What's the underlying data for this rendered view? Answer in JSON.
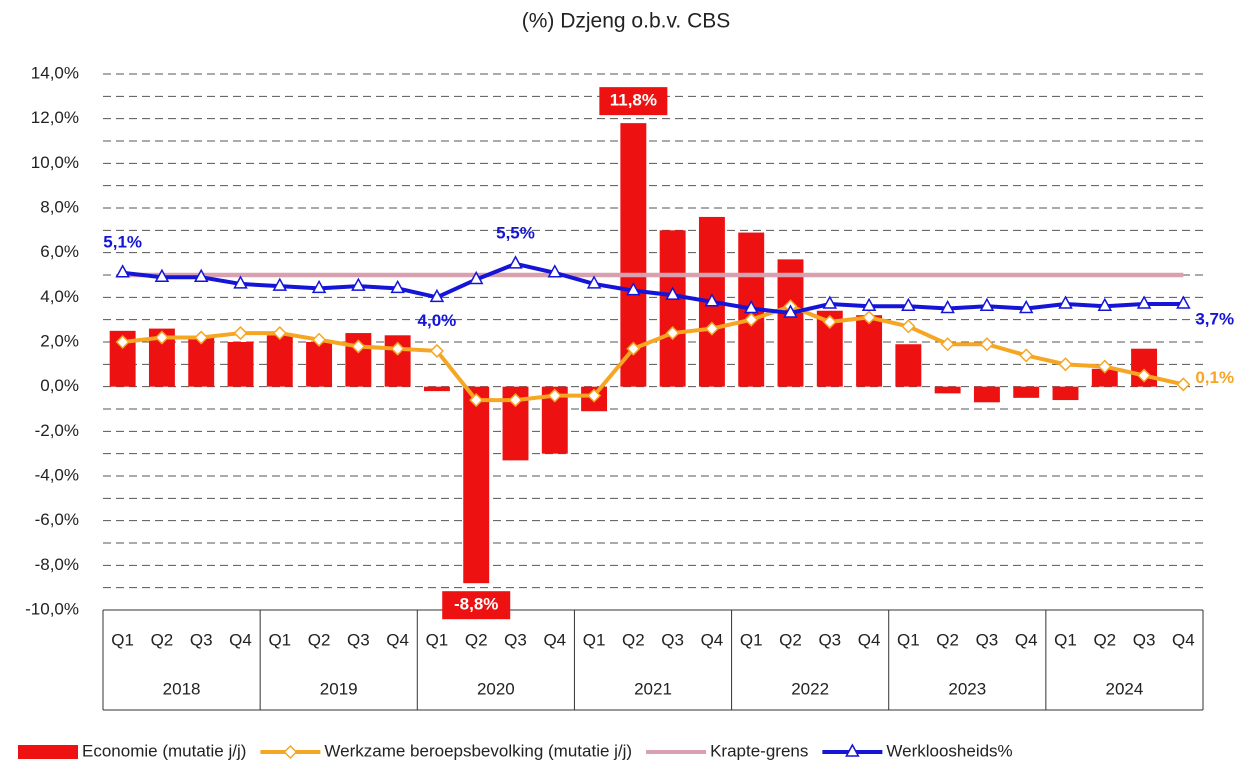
{
  "chart_data": {
    "type": "bar_line",
    "title": "(%) Dzjeng o.b.v. CBS",
    "categories": [
      "Q1",
      "Q2",
      "Q3",
      "Q4",
      "Q1",
      "Q2",
      "Q3",
      "Q4",
      "Q1",
      "Q2",
      "Q3",
      "Q4",
      "Q1",
      "Q2",
      "Q3",
      "Q4",
      "Q1",
      "Q2",
      "Q3",
      "Q4",
      "Q1",
      "Q2",
      "Q3",
      "Q4",
      "Q1",
      "Q2",
      "Q3",
      "Q4"
    ],
    "groups": [
      "2018",
      "2019",
      "2020",
      "2021",
      "2022",
      "2023",
      "2024"
    ],
    "series": [
      {
        "name": "Economie (mutatie j/j)",
        "type": "bar",
        "color": "#ee1111",
        "values": [
          2.5,
          2.6,
          2.2,
          2.0,
          2.3,
          2.0,
          2.4,
          2.3,
          -0.2,
          -8.8,
          -3.3,
          -3.0,
          -1.1,
          11.8,
          7.0,
          7.6,
          6.9,
          5.7,
          3.4,
          3.2,
          1.9,
          -0.3,
          -0.7,
          -0.5,
          -0.6,
          0.8,
          1.7,
          null
        ],
        "value_labels": [
          null,
          null,
          null,
          null,
          null,
          null,
          null,
          null,
          null,
          "-8,8%",
          null,
          null,
          null,
          "11,8%",
          null,
          null,
          null,
          null,
          null,
          null,
          null,
          null,
          null,
          null,
          null,
          null,
          null,
          null
        ]
      },
      {
        "name": "Werkzame beroepsbevolking (mutatie j/j)",
        "type": "line",
        "marker": "diamond",
        "color": "#f5a623",
        "values": [
          2.0,
          2.2,
          2.2,
          2.4,
          2.4,
          2.1,
          1.8,
          1.7,
          1.6,
          -0.6,
          -0.6,
          -0.4,
          -0.4,
          1.7,
          2.4,
          2.6,
          3.0,
          3.6,
          2.9,
          3.1,
          2.7,
          1.9,
          1.9,
          1.4,
          1.0,
          0.9,
          0.5,
          0.1
        ],
        "value_labels": [
          null,
          null,
          null,
          null,
          null,
          null,
          null,
          null,
          null,
          null,
          null,
          null,
          null,
          null,
          null,
          null,
          null,
          null,
          null,
          null,
          null,
          null,
          null,
          null,
          null,
          null,
          null,
          "0,1%"
        ]
      },
      {
        "name": "Krapte-grens",
        "type": "line",
        "color": "#d9a0b0",
        "values": [
          5,
          5,
          5,
          5,
          5,
          5,
          5,
          5,
          5,
          5,
          5,
          5,
          5,
          5,
          5,
          5,
          5,
          5,
          5,
          5,
          5,
          5,
          5,
          5,
          5,
          5,
          5,
          5
        ]
      },
      {
        "name": "Werkloosheids%",
        "type": "line",
        "marker": "triangle",
        "color": "#1515d8",
        "values": [
          5.1,
          4.9,
          4.9,
          4.6,
          4.5,
          4.4,
          4.5,
          4.4,
          4.0,
          4.8,
          5.5,
          5.1,
          4.6,
          4.3,
          4.1,
          3.8,
          3.5,
          3.3,
          3.7,
          3.6,
          3.6,
          3.5,
          3.6,
          3.5,
          3.7,
          3.6,
          3.7,
          3.7
        ],
        "value_labels": [
          "5,1%",
          null,
          null,
          null,
          null,
          null,
          null,
          null,
          "4,0%",
          null,
          "5,5%",
          null,
          null,
          null,
          null,
          null,
          null,
          null,
          null,
          null,
          null,
          null,
          null,
          null,
          null,
          null,
          null,
          "3,7%"
        ]
      }
    ],
    "ylim": [
      -10,
      14
    ],
    "yticks": [
      {
        "value": -10,
        "label": "-10,0%"
      },
      {
        "value": -8,
        "label": "-8,0%"
      },
      {
        "value": -6,
        "label": "-6,0%"
      },
      {
        "value": -4,
        "label": "-4,0%"
      },
      {
        "value": -2,
        "label": "-2,0%"
      },
      {
        "value": 0,
        "label": "0,0%"
      },
      {
        "value": 2,
        "label": "2,0%"
      },
      {
        "value": 4,
        "label": "4,0%"
      },
      {
        "value": 6,
        "label": "6,0%"
      },
      {
        "value": 8,
        "label": "8,0%"
      },
      {
        "value": 10,
        "label": "10,0%"
      },
      {
        "value": 12,
        "label": "12,0%"
      },
      {
        "value": 14,
        "label": "14,0%"
      }
    ],
    "minor_yticks": [
      -9,
      -7,
      -5,
      -3,
      -1,
      1,
      3,
      5,
      7,
      9,
      11,
      13
    ],
    "grid": true
  }
}
